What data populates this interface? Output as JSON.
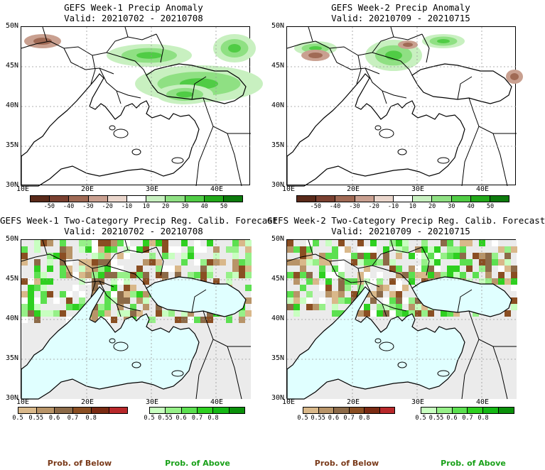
{
  "panels": [
    {
      "title": "GEFS Week-1 Precip Anomaly",
      "valid": "Valid: 20210702 - 20210708",
      "kind": "anom"
    },
    {
      "title": "GEFS Week-2 Precip Anomaly",
      "valid": "Valid: 20210709 - 20210715",
      "kind": "anom"
    },
    {
      "title": "GEFS Week-1 Two-Category Precip Reg. Calib. Forecast",
      "valid": "Valid: 20210702 - 20210708",
      "kind": "prob"
    },
    {
      "title": "GEFS Week-2 Two-Category Precip Reg. Calib. Forecast",
      "valid": "Valid: 20210709 - 20210715",
      "kind": "prob"
    }
  ],
  "axes": {
    "lat_labels": [
      "50N",
      "45N",
      "40N",
      "35N",
      "30N"
    ],
    "lon_labels": [
      "10E",
      "20E",
      "30E",
      "40E"
    ]
  },
  "anomaly_colorbar": {
    "labels": [
      "-50",
      "-40",
      "-30",
      "-20",
      "-10",
      "10",
      "20",
      "30",
      "40",
      "50"
    ],
    "colors": [
      "#5a2a1a",
      "#7a4030",
      "#a06a55",
      "#c9a090",
      "#ead6cc",
      "#ffffff",
      "#c8f0c0",
      "#8fe083",
      "#50cc45",
      "#22a81a",
      "#0c7a0c"
    ]
  },
  "below_colorbar": {
    "labels": [
      "0.5",
      "0.55",
      "0.6",
      "0.7",
      "0.8"
    ],
    "colors": [
      "#d9b88a",
      "#b89468",
      "#8c6a48",
      "#8a4e22",
      "#7a2a12",
      "#b8282a"
    ]
  },
  "above_colorbar": {
    "labels": [
      "0.5",
      "0.55",
      "0.6",
      "0.7",
      "0.8"
    ],
    "colors": [
      "#c8ffc0",
      "#96f088",
      "#5ce050",
      "#2ed020",
      "#14b814",
      "#0a900a"
    ]
  },
  "legend": {
    "below": "Prob. of Below",
    "above": "Prob. of Above",
    "below_color": "#7a3a1a",
    "above_color": "#18a018"
  },
  "map_colors": {
    "sea_prob": "#e0ffff",
    "no_skill": "#ebebeb",
    "coast": "#000000"
  }
}
